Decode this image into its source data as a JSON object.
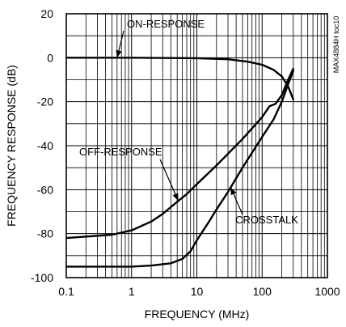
{
  "chart_data": {
    "type": "line",
    "xlabel": "FREQUENCY (MHz)",
    "ylabel": "FREQUENCY RESPONSE (dB)",
    "xscale": "log",
    "xlim": [
      0.1,
      1000
    ],
    "ylim": [
      -100,
      20
    ],
    "xticks": [
      {
        "value": 0.1,
        "label": "0.1"
      },
      {
        "value": 1,
        "label": "1"
      },
      {
        "value": 10,
        "label": "10"
      },
      {
        "value": 100,
        "label": "100"
      },
      {
        "value": 1000,
        "label": "1000"
      }
    ],
    "yticks": [
      {
        "value": 20,
        "label": "20"
      },
      {
        "value": 0,
        "label": "0"
      },
      {
        "value": -20,
        "label": "-20"
      },
      {
        "value": -40,
        "label": "-40"
      },
      {
        "value": -60,
        "label": "-60"
      },
      {
        "value": -80,
        "label": "-80"
      },
      {
        "value": -100,
        "label": "-100"
      }
    ],
    "grid": true,
    "side_label": "MAX4884H toc10",
    "series": [
      {
        "name": "ON-RESPONSE",
        "points": [
          [
            0.1,
            0
          ],
          [
            1,
            0
          ],
          [
            10,
            -0.2
          ],
          [
            30,
            -0.7
          ],
          [
            60,
            -1.8
          ],
          [
            100,
            -3.2
          ],
          [
            150,
            -5.5
          ],
          [
            200,
            -8.5
          ],
          [
            250,
            -13
          ],
          [
            300,
            -19
          ]
        ]
      },
      {
        "name": "OFF-RESPONSE",
        "points": [
          [
            0.1,
            -82
          ],
          [
            0.5,
            -80.5
          ],
          [
            1,
            -78.5
          ],
          [
            2,
            -74.5
          ],
          [
            3,
            -71
          ],
          [
            5,
            -65.5
          ],
          [
            7,
            -62
          ],
          [
            10,
            -57.5
          ],
          [
            20,
            -49
          ],
          [
            50,
            -37
          ],
          [
            100,
            -27
          ],
          [
            130,
            -22
          ],
          [
            160,
            -21
          ],
          [
            200,
            -17
          ],
          [
            250,
            -10
          ],
          [
            300,
            -5
          ]
        ]
      },
      {
        "name": "CROSSTALK",
        "points": [
          [
            0.1,
            -95
          ],
          [
            0.5,
            -95
          ],
          [
            1,
            -95
          ],
          [
            2,
            -94.5
          ],
          [
            4,
            -93.5
          ],
          [
            6,
            -91.5
          ],
          [
            8,
            -88
          ],
          [
            10,
            -83
          ],
          [
            15,
            -75
          ],
          [
            20,
            -69
          ],
          [
            30,
            -61
          ],
          [
            50,
            -50
          ],
          [
            100,
            -36
          ],
          [
            150,
            -28
          ],
          [
            200,
            -20
          ],
          [
            250,
            -12
          ],
          [
            300,
            -6
          ]
        ]
      }
    ],
    "annotations": [
      {
        "text": "ON-RESPONSE",
        "series": 0,
        "at_x": 0.6
      },
      {
        "text": "OFF-RESPONSE",
        "series": 1,
        "at_x": 5.2
      },
      {
        "text": "CROSSTALK",
        "series": 2,
        "at_x": 33
      }
    ]
  }
}
